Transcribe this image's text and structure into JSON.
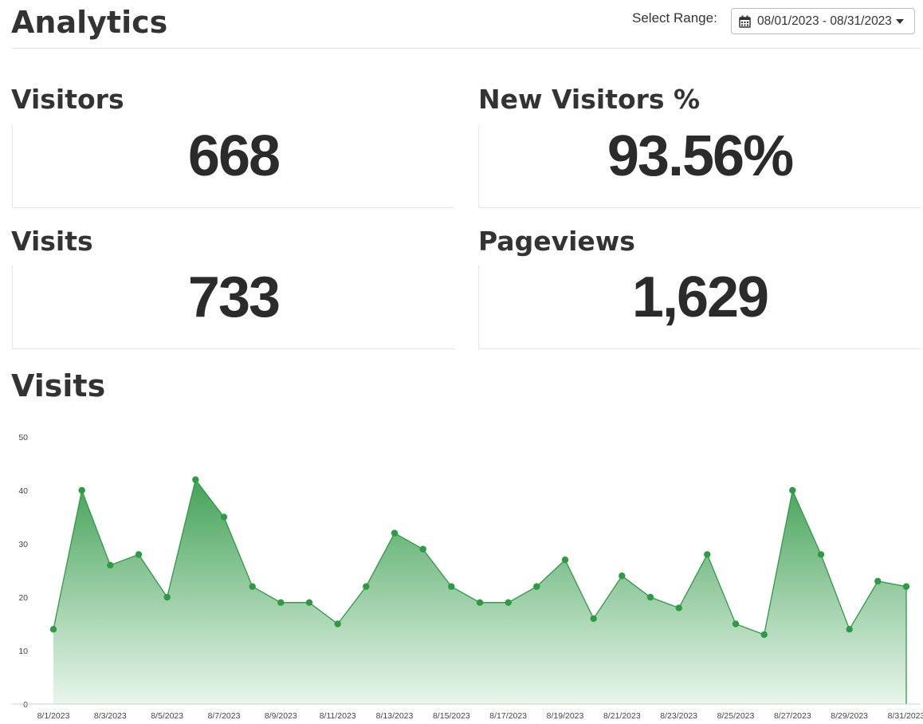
{
  "header": {
    "title": "Analytics",
    "range_label": "Select Range:",
    "range_value": "08/01/2023 - 08/31/2023"
  },
  "stats": {
    "visitors": {
      "label": "Visitors",
      "value": "668"
    },
    "new_visitors": {
      "label": "New Visitors %",
      "value": "93.56%"
    },
    "visits": {
      "label": "Visits",
      "value": "733"
    },
    "pageviews": {
      "label": "Pageviews",
      "value": "1,629"
    }
  },
  "chart_section": {
    "title": "Visits"
  },
  "colors": {
    "accent": "#2f9a44",
    "fill_top": "#3a9d4f",
    "fill_bottom": "#e6f4e9"
  },
  "chart_data": {
    "type": "area",
    "title": "",
    "xlabel": "",
    "ylabel": "",
    "ylim": [
      0,
      50
    ],
    "y_ticks": [
      0,
      10,
      20,
      30,
      40,
      50
    ],
    "x": [
      "8/1/2023",
      "8/2/2023",
      "8/3/2023",
      "8/4/2023",
      "8/5/2023",
      "8/6/2023",
      "8/7/2023",
      "8/8/2023",
      "8/9/2023",
      "8/10/2023",
      "8/11/2023",
      "8/12/2023",
      "8/13/2023",
      "8/14/2023",
      "8/15/2023",
      "8/16/2023",
      "8/17/2023",
      "8/18/2023",
      "8/19/2023",
      "8/20/2023",
      "8/21/2023",
      "8/22/2023",
      "8/23/2023",
      "8/24/2023",
      "8/25/2023",
      "8/26/2023",
      "8/27/2023",
      "8/28/2023",
      "8/29/2023",
      "8/30/2023",
      "8/31/2023"
    ],
    "x_tick_labels": [
      "8/1/2023",
      "8/3/2023",
      "8/5/2023",
      "8/7/2023",
      "8/9/2023",
      "8/11/2023",
      "8/13/2023",
      "8/15/2023",
      "8/17/2023",
      "8/19/2023",
      "8/21/2023",
      "8/23/2023",
      "8/25/2023",
      "8/27/2023",
      "8/29/2023",
      "8/31/2023"
    ],
    "series": [
      {
        "values": [
          14,
          40,
          26,
          28,
          20,
          42,
          35,
          22,
          19,
          19,
          15,
          22,
          32,
          29,
          22,
          19,
          19,
          22,
          27,
          16,
          24,
          20,
          18,
          28,
          15,
          13,
          40,
          28,
          14,
          23,
          22
        ]
      }
    ],
    "grid": false
  }
}
